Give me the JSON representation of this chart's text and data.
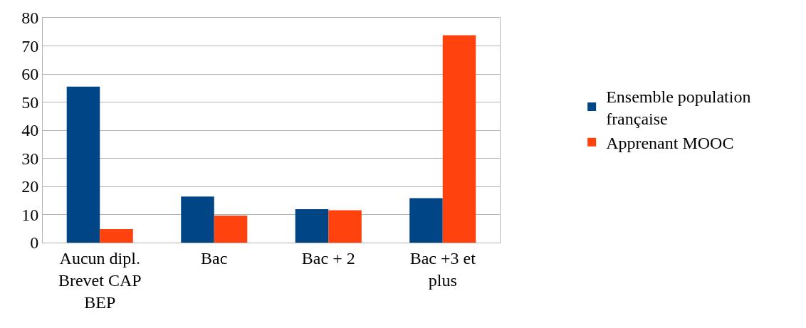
{
  "chart_data": {
    "type": "bar",
    "categories": [
      "Aucun dipl.\nBrevet CAP\nBEP",
      "Bac",
      "Bac + 2",
      "Bac +3 et\nplus"
    ],
    "series": [
      {
        "name": "Ensemble population\nfrançaise",
        "color": "#004586",
        "values": [
          55.5,
          16.4,
          11.9,
          15.8
        ]
      },
      {
        "name": "Apprenant MOOC",
        "color": "#ff420e",
        "values": [
          4.8,
          9.6,
          11.5,
          73.8
        ]
      }
    ],
    "ylim": [
      0,
      80
    ],
    "yticks": [
      0,
      10,
      20,
      30,
      40,
      50,
      60,
      70,
      80
    ],
    "grid": "y",
    "legend": "right"
  }
}
